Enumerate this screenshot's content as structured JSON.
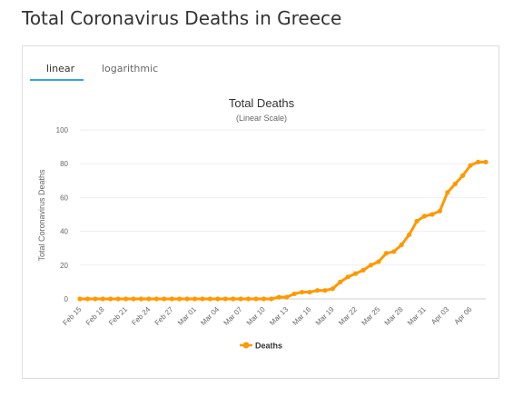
{
  "page": {
    "title": "Total Coronavirus Deaths in Greece"
  },
  "tabs": [
    {
      "label": "linear",
      "active": true
    },
    {
      "label": "logarithmic",
      "active": false
    }
  ],
  "colors": {
    "accent": "#3aa5d6",
    "series": "#ff9900"
  },
  "chart_data": {
    "type": "line",
    "title": "Total Deaths",
    "subtitle": "(Linear Scale)",
    "xlabel": "",
    "ylabel": "Total Coronavirus Deaths",
    "ylim": [
      0,
      100
    ],
    "yticks": [
      0,
      20,
      40,
      60,
      80,
      100
    ],
    "grid": true,
    "legend": "bottom",
    "x": [
      "Feb 15",
      "Feb 16",
      "Feb 17",
      "Feb 18",
      "Feb 19",
      "Feb 20",
      "Feb 21",
      "Feb 22",
      "Feb 23",
      "Feb 24",
      "Feb 25",
      "Feb 26",
      "Feb 27",
      "Feb 28",
      "Feb 29",
      "Mar 01",
      "Mar 02",
      "Mar 03",
      "Mar 04",
      "Mar 05",
      "Mar 06",
      "Mar 07",
      "Mar 08",
      "Mar 09",
      "Mar 10",
      "Mar 11",
      "Mar 12",
      "Mar 13",
      "Mar 14",
      "Mar 15",
      "Mar 16",
      "Mar 17",
      "Mar 18",
      "Mar 19",
      "Mar 20",
      "Mar 21",
      "Mar 22",
      "Mar 23",
      "Mar 24",
      "Mar 25",
      "Mar 26",
      "Mar 27",
      "Mar 28",
      "Mar 29",
      "Mar 30",
      "Mar 31",
      "Apr 01",
      "Apr 02",
      "Apr 03",
      "Apr 04",
      "Apr 05",
      "Apr 06",
      "Apr 07",
      "Apr 08"
    ],
    "xtick_labels": [
      "Feb 15",
      "Feb 18",
      "Feb 21",
      "Feb 24",
      "Feb 27",
      "Mar 01",
      "Mar 04",
      "Mar 07",
      "Mar 10",
      "Mar 13",
      "Mar 16",
      "Mar 19",
      "Mar 22",
      "Mar 25",
      "Mar 28",
      "Mar 31",
      "Apr 03",
      "Apr 06"
    ],
    "series": [
      {
        "name": "Deaths",
        "values": [
          0,
          0,
          0,
          0,
          0,
          0,
          0,
          0,
          0,
          0,
          0,
          0,
          0,
          0,
          0,
          0,
          0,
          0,
          0,
          0,
          0,
          0,
          0,
          0,
          0,
          0,
          1,
          1,
          3,
          4,
          4,
          5,
          5,
          6,
          10,
          13,
          15,
          17,
          20,
          22,
          27,
          28,
          32,
          38,
          46,
          49,
          50,
          52,
          63,
          68,
          73,
          79,
          81,
          81
        ]
      }
    ]
  }
}
